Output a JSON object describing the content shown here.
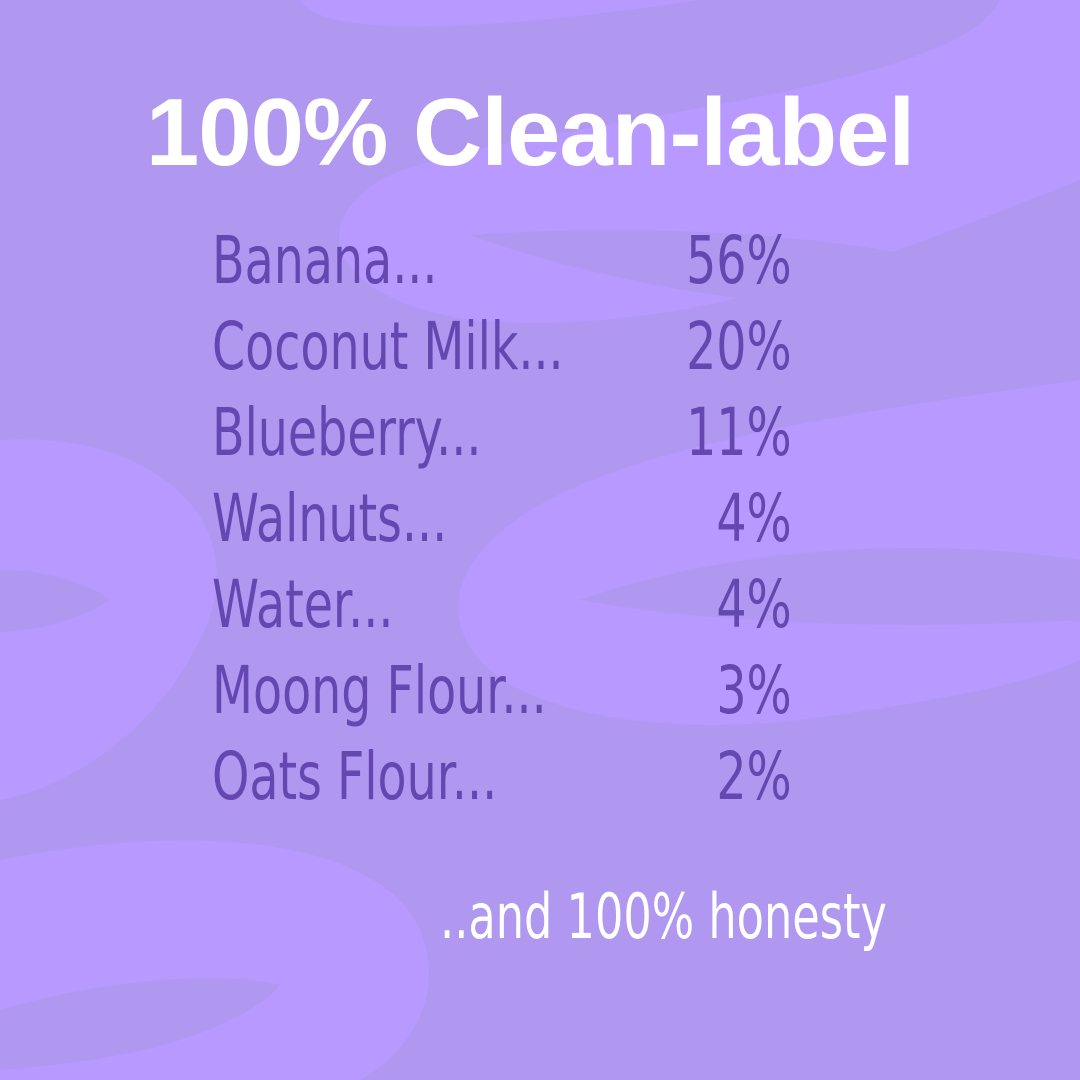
{
  "colors": {
    "background": "#b097f0",
    "swirl": "#b899ff",
    "text": "#6447b0",
    "title": "#ffffff"
  },
  "title": "100% Clean-label",
  "ingredients": [
    {
      "name": "Banana...",
      "percent": "56%"
    },
    {
      "name": "Coconut Milk...",
      "percent": "20%"
    },
    {
      "name": "Blueberry...",
      "percent": "11%"
    },
    {
      "name": "Walnuts...",
      "percent": "4%"
    },
    {
      "name": "Water...",
      "percent": "4%"
    },
    {
      "name": "Moong Flour...",
      "percent": "3%"
    },
    {
      "name": "Oats Flour...",
      "percent": "2%"
    }
  ],
  "tagline": "..and 100% honesty"
}
